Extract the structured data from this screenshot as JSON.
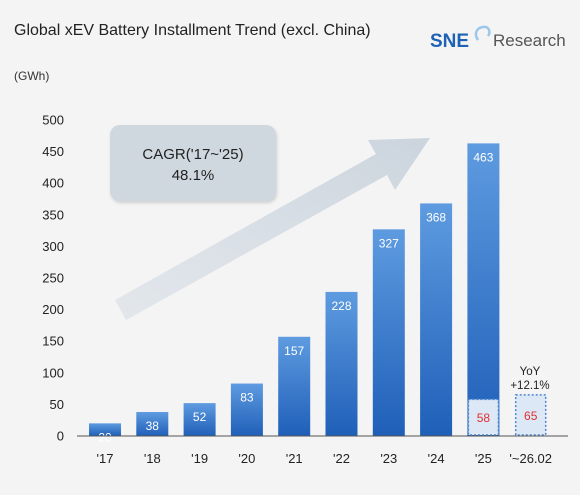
{
  "chart_data": {
    "type": "bar",
    "title": "Global xEV Battery Installment Trend (excl. China)",
    "ylabel": "(GWh)",
    "ylim": [
      0,
      500
    ],
    "yticks": [
      0,
      50,
      100,
      150,
      200,
      250,
      300,
      350,
      400,
      450,
      500
    ],
    "grid": false,
    "categories": [
      "'17",
      "'18",
      "'19",
      "'20",
      "'21",
      "'22",
      "'23",
      "'24",
      "'25",
      "'~26.02"
    ],
    "values": [
      20,
      38,
      52,
      83,
      157,
      228,
      327,
      368,
      463,
      null
    ],
    "value_labels": [
      "20",
      "38",
      "52",
      "83",
      "157",
      "228",
      "327",
      "368",
      "463",
      ""
    ],
    "highlight": [
      {
        "category": "'25",
        "value": 58,
        "label": "58",
        "style": "dashed-box"
      },
      {
        "category": "'~26.02",
        "value": 65,
        "label": "65",
        "style": "dashed-box"
      }
    ],
    "annotations": {
      "cagr_line1": "CAGR('17~'25)",
      "cagr_line2": "48.1%",
      "yoy_line1": "YoY",
      "yoy_line2": "+12.1%"
    }
  },
  "brand": {
    "part1": "SNE",
    "part2": "Research"
  },
  "colors": {
    "bar_top": "#5e9be0",
    "bar_bottom": "#1f5fb8",
    "highlight_fill": "#dde8f6",
    "highlight_stroke": "#4a86d0",
    "highlight_text": "#e03030",
    "callout_fill": "#cfd7df",
    "arrow_fill": "#d3dbe3",
    "background": "#f4f4f4"
  }
}
